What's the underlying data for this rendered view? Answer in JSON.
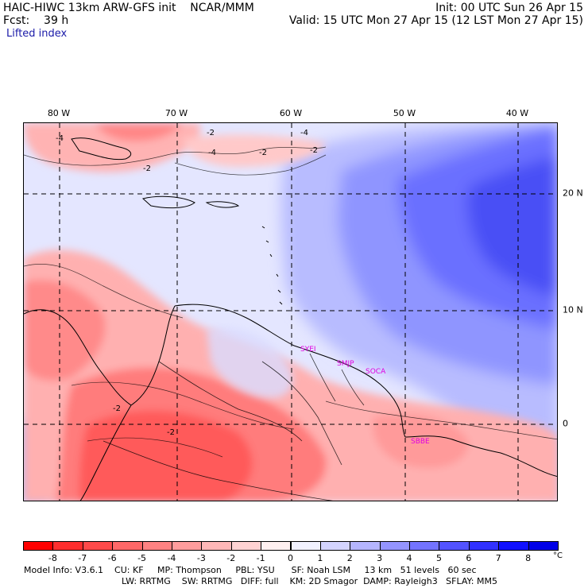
{
  "header": {
    "line1_left": "HAIC-HIWC 13km ARW-GFS init    NCAR/MMM",
    "line1_right": "Init: 00 UTC Sun 26 Apr 15",
    "line2_left": "Fcst:    39 h",
    "line2_right": "Valid: 15 UTC Mon 27 Apr 15 (12 LST Mon 27 Apr 15)",
    "field_name": "Lifted index"
  },
  "map": {
    "lon_labels": [
      "80 W",
      "70 W",
      "60 W",
      "50 W",
      "40 W"
    ],
    "lat_labels": [
      "20 N",
      "10 N",
      "0"
    ],
    "station_labels": [
      "SYEI",
      "SMJP",
      "SOCA",
      "SBBE"
    ],
    "contour_labels": [
      "-2",
      "-4",
      "-2",
      "-4",
      "-2",
      "-4",
      "-2",
      "-2",
      "-2"
    ],
    "station_color": "#e000e0"
  },
  "colorbar": {
    "ticks": [
      "-8",
      "-7",
      "-6",
      "-5",
      "-4",
      "-3",
      "-2",
      "-1",
      "0",
      "1",
      "2",
      "3",
      "4",
      "5",
      "6",
      "7",
      "8"
    ],
    "unit": "°C",
    "colors": [
      "#ff0000",
      "#ff2e2e",
      "#ff4a4a",
      "#ff6868",
      "#ff8282",
      "#ff9d9d",
      "#ffb7b7",
      "#ffd2d2",
      "#fff0f0",
      "#f2f2ff",
      "#d4d4ff",
      "#b5b5ff",
      "#9494ff",
      "#7373ff",
      "#5252ff",
      "#3131ff",
      "#1010ff",
      "#0000e8"
    ]
  },
  "footer": {
    "line1": "Model Info: V3.6.1    CU: KF     MP: Thompson     PBL: YSU      SF: Noah LSM     13 km   51 levels   60 sec",
    "line2": "LW: RRTMG    SW: RRTMG   DIFF: full    KM: 2D Smagor  DAMP: Rayleigh3   SFLAY: MM5"
  }
}
